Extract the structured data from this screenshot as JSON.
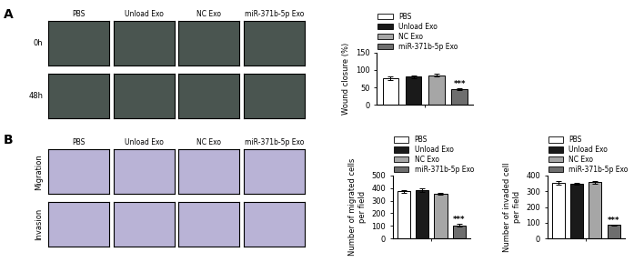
{
  "panels": [
    {
      "label": "A",
      "columns": [
        "PBS",
        "Unload Exo",
        "NC Exo",
        "miR-371b-5p Exo"
      ],
      "rows": [
        "0h",
        "48h"
      ]
    },
    {
      "label": "B",
      "columns": [
        "PBS",
        "Unload Exo",
        "NC Exo",
        "miR-371b-5p Exo"
      ],
      "rows": [
        "Migration",
        "Invasion"
      ]
    }
  ],
  "chart_data": [
    {
      "type": "bar",
      "y_label": "Wound closure (%)",
      "categories": [
        "PBS",
        "Unload Exo",
        "NC Exo",
        "miR-371b-5p Exo"
      ],
      "values": [
        77,
        80,
        85,
        44
      ],
      "errors": [
        5,
        5,
        3,
        3
      ],
      "colors": [
        "#ffffff",
        "#1a1a1a",
        "#a6a6a6",
        "#6e6e6e"
      ],
      "ylim": [
        0,
        150
      ],
      "yticks": [
        0,
        50,
        100,
        150
      ],
      "legend": "lower left",
      "tick_labels": "y",
      "annotations": [
        {
          "category": "miR-371b-5p Exo",
          "text": "***"
        }
      ]
    },
    {
      "type": "bar",
      "y_label": "Number of migrated cells\nper field",
      "categories": [
        "PBS",
        "Unload Exo",
        "NC Exo",
        "miR-371b-5p Exo"
      ],
      "values": [
        375,
        385,
        355,
        105
      ],
      "errors": [
        10,
        15,
        10,
        8
      ],
      "colors": [
        "#ffffff",
        "#1a1a1a",
        "#a6a6a6",
        "#6e6e6e"
      ],
      "ylim": [
        0,
        500
      ],
      "yticks": [
        0,
        100,
        200,
        300,
        400,
        500
      ],
      "legend": "lower left",
      "tick_labels": "y",
      "annotations": [
        {
          "category": "miR-371b-5p Exo",
          "text": "***"
        }
      ]
    },
    {
      "type": "bar",
      "y_label": "Number of invaded cell\nper field",
      "categories": [
        "PBS",
        "Unload Exo",
        "NC Exo",
        "miR-371b-5p Exo"
      ],
      "values": [
        355,
        348,
        358,
        85
      ],
      "errors": [
        12,
        8,
        8,
        5
      ],
      "colors": [
        "#ffffff",
        "#1a1a1a",
        "#a6a6a6",
        "#6e6e6e"
      ],
      "ylim": [
        0,
        400
      ],
      "yticks": [
        0,
        100,
        200,
        300,
        400
      ],
      "legend": "lower left",
      "tick_labels": "y",
      "annotations": [
        {
          "category": "miR-371b-5p Exo",
          "text": "***"
        }
      ]
    }
  ]
}
